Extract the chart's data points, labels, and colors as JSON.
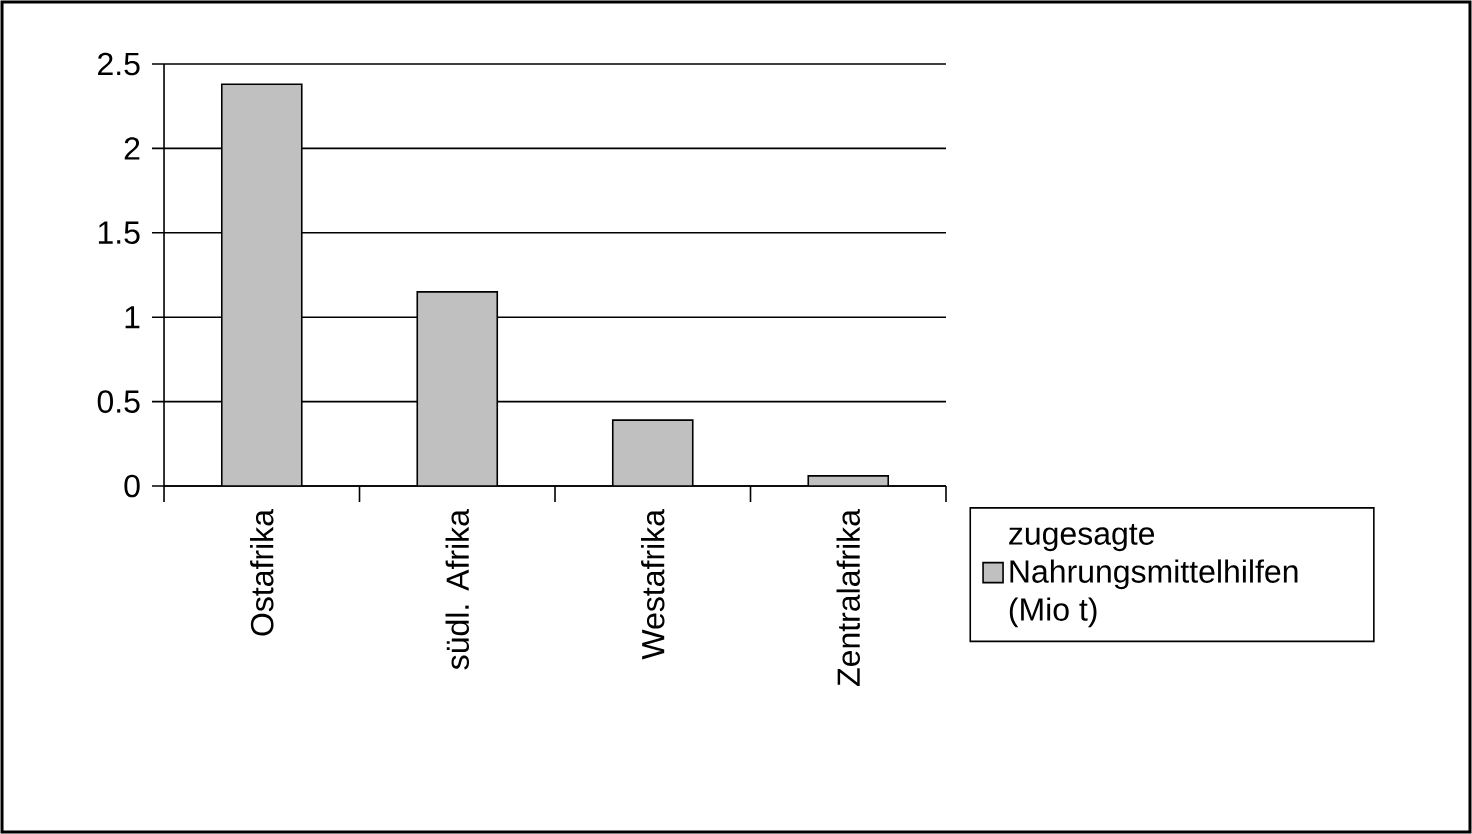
{
  "chart_data": {
    "type": "bar",
    "categories": [
      "Ostafrika",
      "südl. Afrika",
      "Westafrika",
      "Zentralafrika"
    ],
    "series": [
      {
        "name": "zugesagte Nahrungsmittelhilfen (Mio t)",
        "color": "#c0c0c0",
        "values": [
          2.38,
          1.15,
          0.39,
          0.06
        ]
      }
    ],
    "ylim": [
      0,
      2.5
    ],
    "yticks": [
      0,
      0.5,
      1,
      1.5,
      2,
      2.5
    ],
    "grid": "y",
    "legend": "bottom right"
  }
}
